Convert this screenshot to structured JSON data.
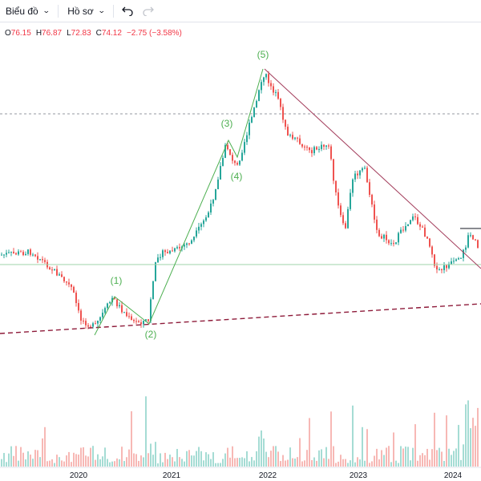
{
  "toolbar": {
    "chart_label": "Biểu đồ",
    "profile_label": "Hồ sơ",
    "undo_icon": "undo-icon",
    "redo_icon": "redo-icon"
  },
  "legend": {
    "o_label": "O",
    "o_value": "76.15",
    "h_label": "H",
    "h_value": "76.87",
    "l_label": "L",
    "l_value": "72.83",
    "c_label": "C",
    "c_value": "74.12",
    "change": "−2.75 (−3.58%)"
  },
  "colors": {
    "up": "#26a69a",
    "down": "#ef5350",
    "wave": "#4caf50",
    "trendline": "#a23b5a",
    "support": "#8e1b3a",
    "horizontal": "#9fd3a8"
  },
  "chart_data": {
    "type": "candlestick",
    "x_ticks": [
      "2020",
      "2021",
      "2022",
      "2023",
      "2024"
    ],
    "wave_labels": [
      "(1)",
      "(2)",
      "(3)",
      "(4)",
      "(5)"
    ],
    "last_close": 74.12
  }
}
